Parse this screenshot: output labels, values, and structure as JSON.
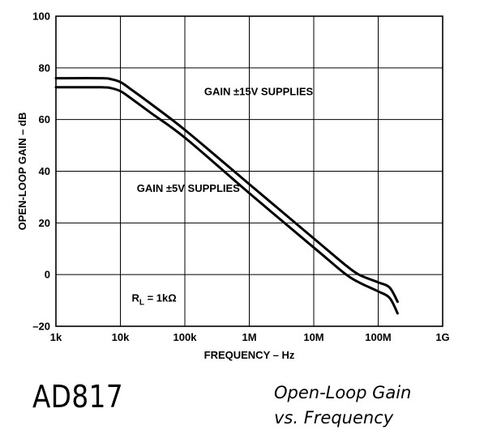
{
  "chart_data": {
    "type": "line",
    "xlabel": "FREQUENCY – Hz",
    "ylabel": "OPEN-LOOP GAIN – dB",
    "x_scale": "log",
    "xlim": [
      1000,
      1000000000
    ],
    "ylim": [
      -20,
      100
    ],
    "x_ticks": [
      1000,
      10000,
      100000,
      1000000,
      10000000,
      100000000,
      1000000000
    ],
    "x_tick_labels": [
      "1k",
      "10k",
      "100k",
      "1M",
      "10M",
      "100M",
      "1G"
    ],
    "y_ticks": [
      -20,
      0,
      20,
      40,
      60,
      80,
      100
    ],
    "y_tick_labels": [
      "–20",
      "0",
      "20",
      "40",
      "60",
      "80",
      "100"
    ],
    "grid": true,
    "series": [
      {
        "name": "GAIN ±15V SUPPLIES",
        "x": [
          1000,
          5000,
          7000,
          10000,
          15000,
          30000,
          100000,
          1000000,
          10000000,
          30000000,
          50000000,
          100000000,
          150000000,
          200000000
        ],
        "y": [
          76,
          76,
          75.7,
          74.5,
          71.5,
          66,
          56,
          35,
          14,
          4,
          0,
          -3,
          -5,
          -10.5
        ]
      },
      {
        "name": "GAIN ±5V SUPPLIES",
        "x": [
          1000,
          5000,
          7000,
          10000,
          15000,
          30000,
          100000,
          1000000,
          10000000,
          30000000,
          50000000,
          100000000,
          150000000,
          200000000
        ],
        "y": [
          72.5,
          72.5,
          72.2,
          71,
          68,
          62.5,
          53,
          31.5,
          10.5,
          0.5,
          -3,
          -6.5,
          -9,
          -15
        ]
      }
    ],
    "annotations": [
      {
        "text": "GAIN ±15V SUPPLIES",
        "x": 200000,
        "y": 69.5
      },
      {
        "text": "GAIN ±5V SUPPLIES",
        "x": 18000,
        "y": 32
      }
    ],
    "note": {
      "prefix": "R",
      "subscript": "L",
      "suffix": " = 1kΩ"
    }
  },
  "footer": {
    "part_number": "AD817",
    "caption_line1": "Open-Loop Gain",
    "caption_line2": "vs. Frequency"
  }
}
